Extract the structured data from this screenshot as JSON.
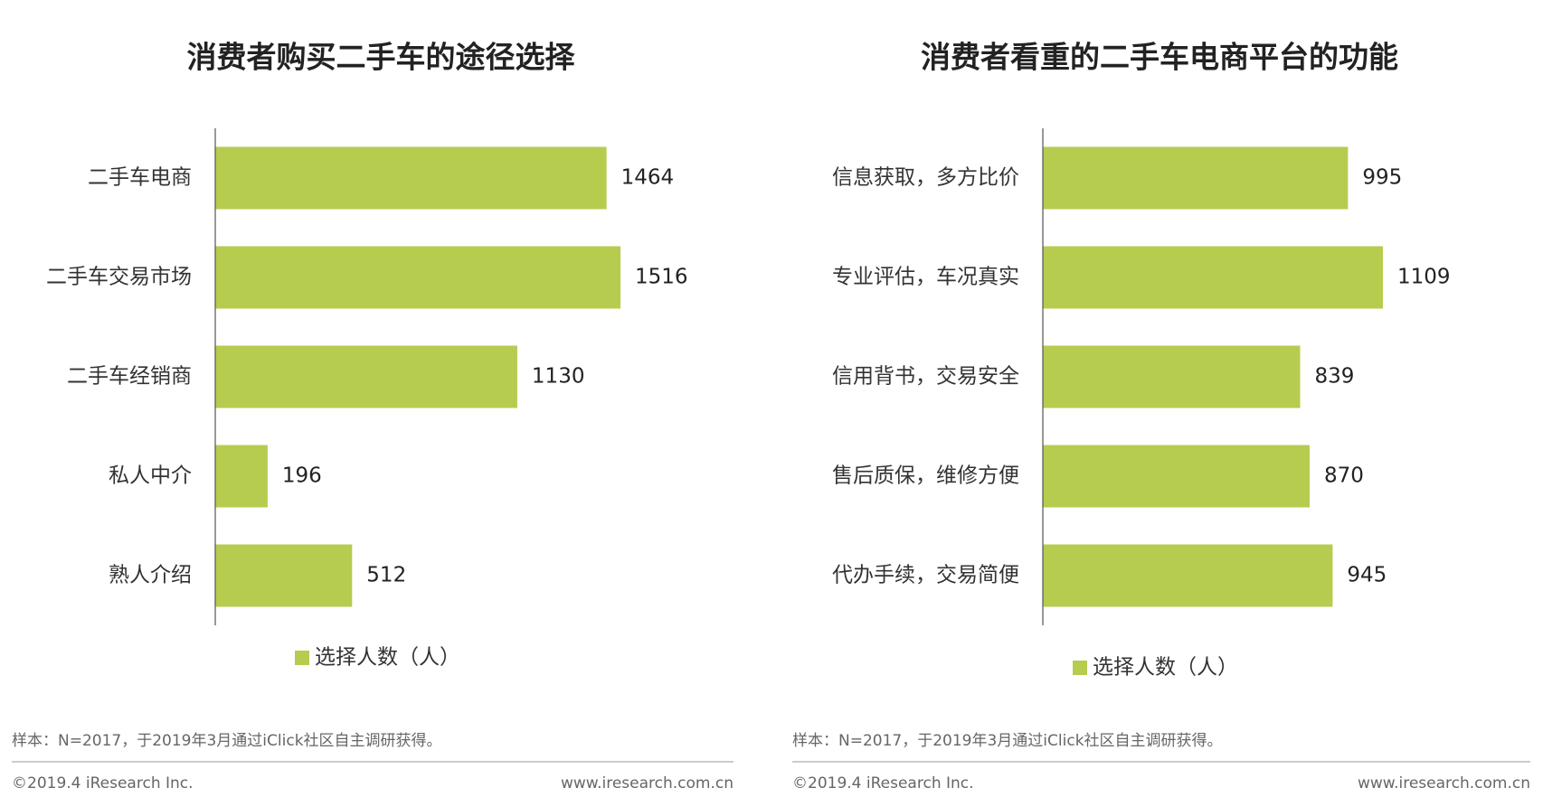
{
  "chart_data": [
    {
      "type": "bar",
      "orientation": "horizontal",
      "title": "消费者购买二手车的途径选择",
      "categories": [
        "二手车电商",
        "二手车交易市场",
        "二手车经销商",
        "私人中介",
        "熟人介绍"
      ],
      "series": [
        {
          "name": "选择人数（人）",
          "color": "#b5cc4f",
          "values": [
            1464,
            1516,
            1130,
            196,
            512
          ]
        }
      ],
      "note": "样本：N=2017，于2019年3月通过iClick社区自主调研获得。",
      "copyright": "©2019.4 iResearch Inc.",
      "source": "www.iresearch.com.cn"
    },
    {
      "type": "bar",
      "orientation": "horizontal",
      "title": "消费者看重的二手车电商平台的功能",
      "categories": [
        "信息获取，多方比价",
        "专业评估，车况真实",
        "信用背书，交易安全",
        "售后质保，维修方便",
        "代办手续，交易简便"
      ],
      "series": [
        {
          "name": "选择人数（人）",
          "color": "#b5cc4f",
          "values": [
            995,
            1109,
            839,
            870,
            945
          ]
        }
      ],
      "note": "样本：N=2017，于2019年3月通过iClick社区自主调研获得。",
      "copyright": "©2019.4 iResearch Inc.",
      "source": "www.iresearch.com.cn"
    }
  ]
}
